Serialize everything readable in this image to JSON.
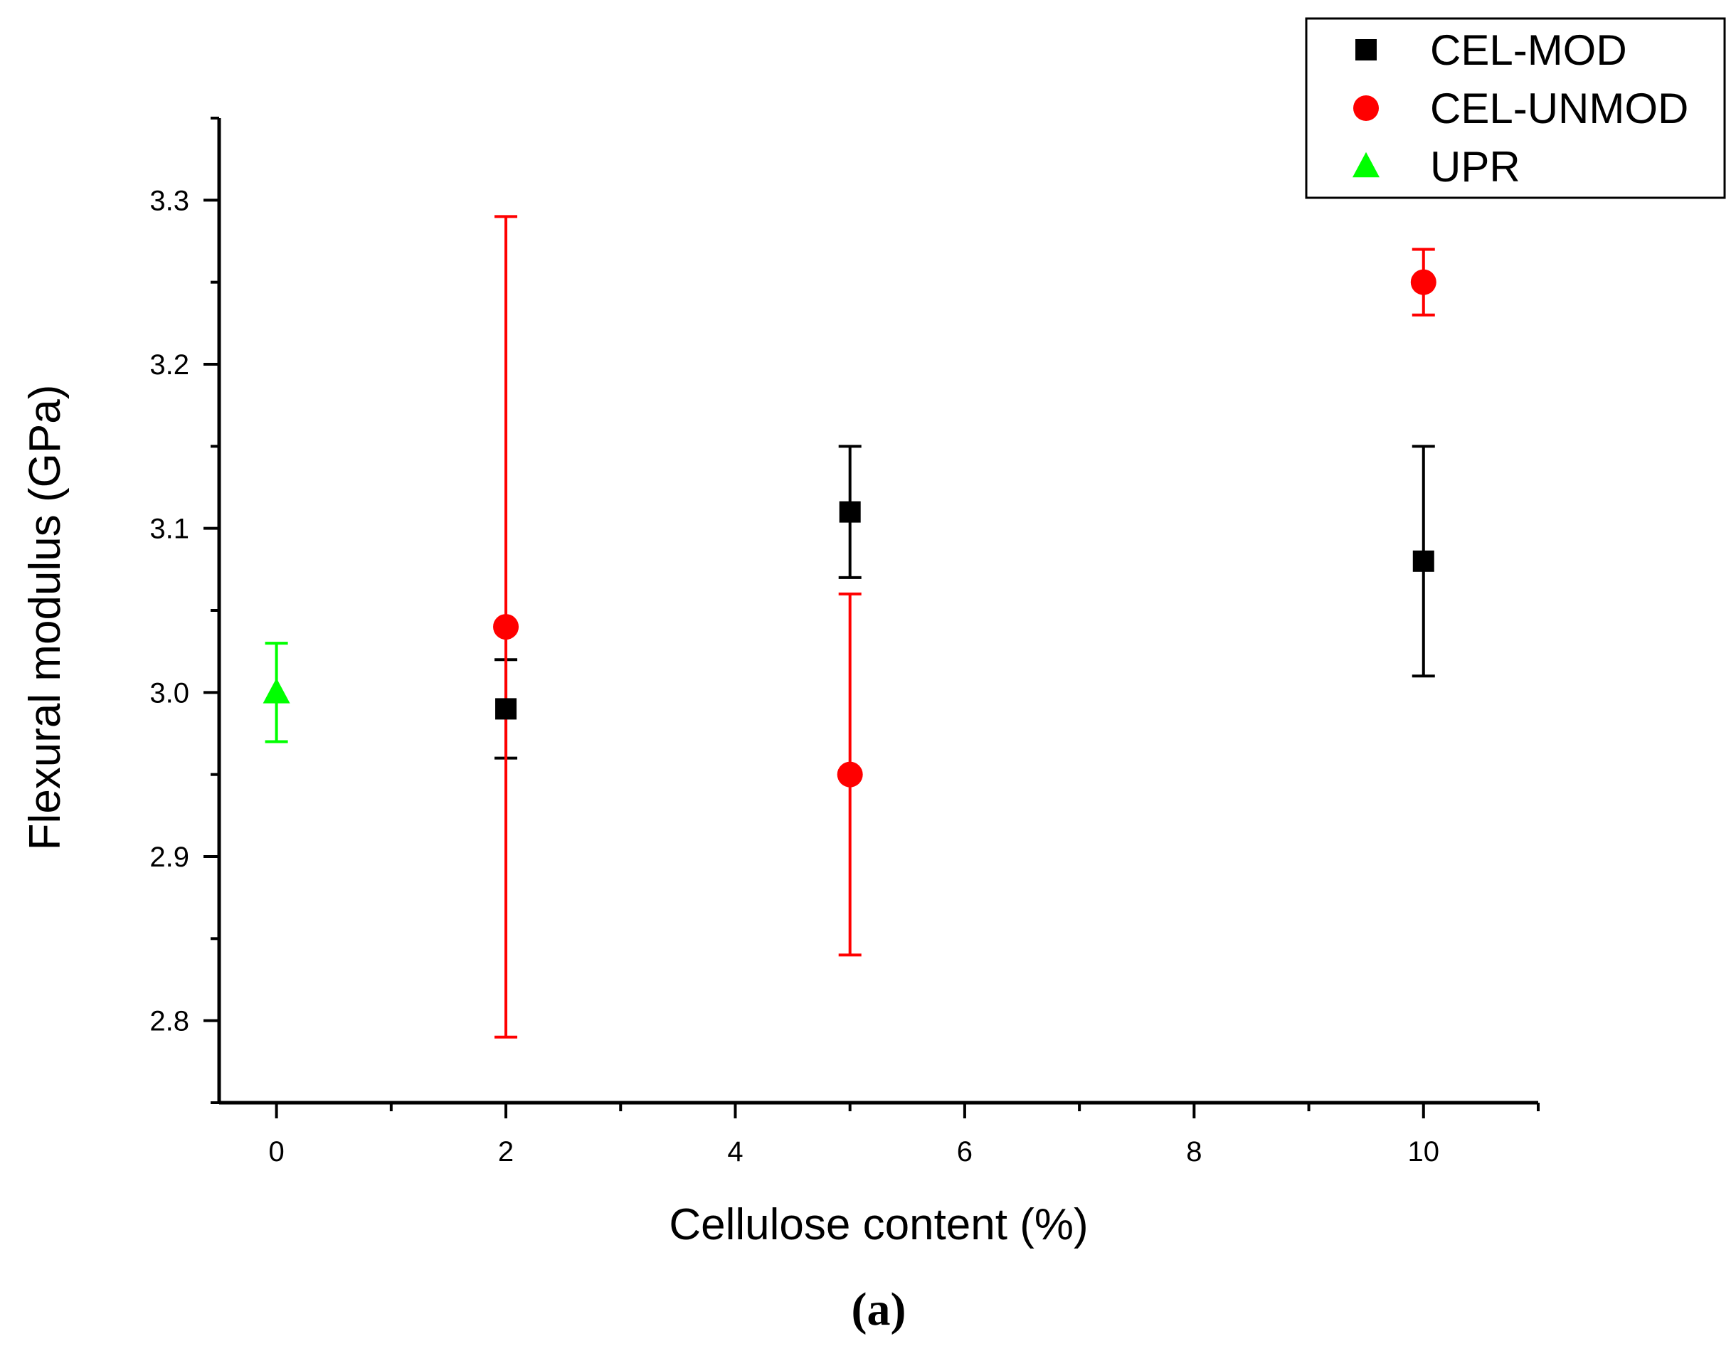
{
  "chart_data": {
    "type": "scatter",
    "title": "",
    "xlabel": "Cellulose content (%)",
    "ylabel": "Flexural modulus (GPa)",
    "xlim": [
      -0.5,
      11
    ],
    "ylim": [
      2.75,
      3.35
    ],
    "xticks": [
      0,
      2,
      4,
      6,
      8,
      10
    ],
    "yticks": [
      2.8,
      2.9,
      3.0,
      3.1,
      3.2,
      3.3
    ],
    "xtick_labels": [
      "0",
      "2",
      "4",
      "6",
      "8",
      "10"
    ],
    "ytick_labels": [
      "2.8",
      "2.9",
      "3.0",
      "3.1",
      "3.2",
      "3.3"
    ],
    "legend_position": "top-right",
    "caption": "(a)",
    "series": [
      {
        "name": "CEL-MOD",
        "marker": "square",
        "color": "#000000",
        "points": [
          {
            "x": 2,
            "y": 2.99,
            "err_low": 2.96,
            "err_high": 3.02
          },
          {
            "x": 5,
            "y": 3.11,
            "err_low": 3.07,
            "err_high": 3.15
          },
          {
            "x": 10,
            "y": 3.08,
            "err_low": 3.01,
            "err_high": 3.15
          }
        ]
      },
      {
        "name": "CEL-UNMOD",
        "marker": "circle",
        "color": "#ff0000",
        "points": [
          {
            "x": 2,
            "y": 3.04,
            "err_low": 2.79,
            "err_high": 3.29
          },
          {
            "x": 5,
            "y": 2.95,
            "err_low": 2.84,
            "err_high": 3.06
          },
          {
            "x": 10,
            "y": 3.25,
            "err_low": 3.23,
            "err_high": 3.27
          }
        ]
      },
      {
        "name": "UPR",
        "marker": "triangle",
        "color": "#00ff00",
        "points": [
          {
            "x": 0,
            "y": 3.0,
            "err_low": 2.97,
            "err_high": 3.03
          }
        ]
      }
    ]
  }
}
